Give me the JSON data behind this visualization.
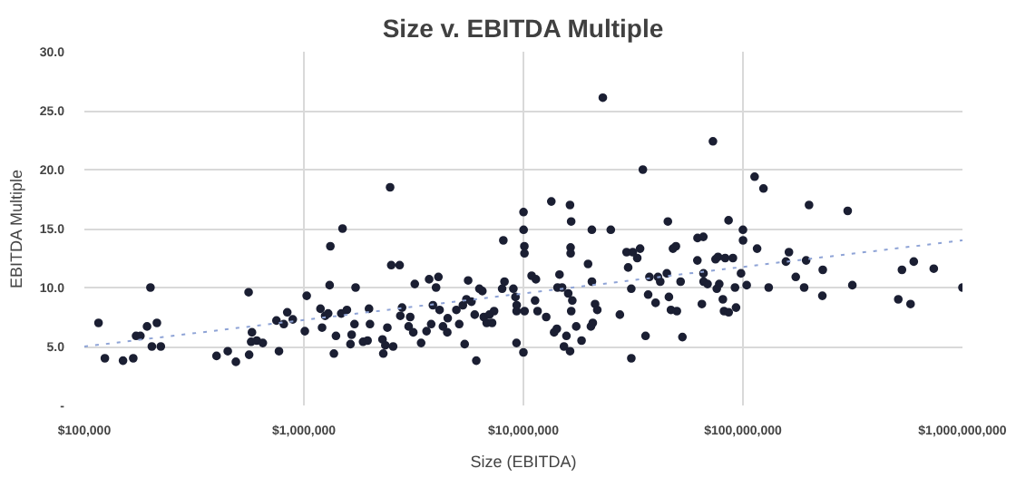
{
  "chart_data": {
    "type": "scatter",
    "title": "Size v. EBITDA Multiple",
    "xlabel": "Size (EBITDA)",
    "ylabel": "EBITDA Multiple",
    "log": "x",
    "grid": true,
    "marker": "circle",
    "xlim": [
      100000,
      1000000000
    ],
    "xticks": [
      {
        "value": 100000,
        "label": "$100,000"
      },
      {
        "value": 1000000,
        "label": "$1,000,000"
      },
      {
        "value": 10000000,
        "label": "$10,000,000"
      },
      {
        "value": 100000000,
        "label": "$100,000,000"
      },
      {
        "value": 1000000000,
        "label": "$1,000,000,000"
      }
    ],
    "ylim": [
      0,
      30
    ],
    "yticks": [
      {
        "value": 0,
        "label": "-"
      },
      {
        "value": 5,
        "label": "5.0"
      },
      {
        "value": 10,
        "label": "10.0"
      },
      {
        "value": 15,
        "label": "15.0"
      },
      {
        "value": 20,
        "label": "20.0"
      },
      {
        "value": 25,
        "label": "25.0"
      },
      {
        "value": 30,
        "label": "30.0"
      }
    ],
    "series": [
      {
        "color": "#1b1f33",
        "x": [
          116000,
          124000,
          150000,
          167000,
          172000,
          180000,
          193000,
          200000,
          203000,
          214000,
          223000,
          400000,
          450000,
          490000,
          560000,
          563000,
          580000,
          575000,
          610000,
          650000,
          750000,
          770000,
          810000,
          840000,
          890000,
          1010000,
          1030000,
          1190000,
          1210000,
          1250000,
          1290000,
          1310000,
          1320000,
          1500000,
          1370000,
          1400000,
          1480000,
          1570000,
          1650000,
          1700000,
          1720000,
          1630000,
          1980000,
          1860000,
          2000000,
          1950000,
          2280000,
          2300000,
          2350000,
          2400000,
          2470000,
          2500000,
          2550000,
          2730000,
          2750000,
          2800000,
          3000000,
          3050000,
          3150000,
          3200000,
          3420000,
          3620000,
          3720000,
          3800000,
          3870000,
          4000000,
          4100000,
          4150000,
          4300000,
          4500000,
          4520000,
          4950000,
          5100000,
          5300000,
          5400000,
          5600000,
          5500000,
          5800000,
          6000000,
          6100000,
          6300000,
          6500000,
          6600000,
          6800000,
          7000000,
          7200000,
          7350000,
          8000000,
          8100000,
          8200000,
          9000000,
          9200000,
          9300000,
          9310000,
          9320000,
          10000000,
          10010000,
          10020000,
          10100000,
          10110000,
          10120000,
          10900000,
          11400000,
          11300000,
          11600000,
          12700000,
          13400000,
          13800000,
          14200000,
          14300000,
          14600000,
          15000000,
          15300000,
          15700000,
          16400000,
          16410000,
          16000000,
          16300000,
          16500000,
          16310000,
          16510000,
          16700000,
          17400000,
          18400000,
          19700000,
          20500000,
          20510000,
          21200000,
          21700000,
          20300000,
          20700000,
          23000000,
          25000000,
          27500000,
          29500000,
          30000000,
          31000000,
          31010000,
          31500000,
          33000000,
          34000000,
          35000000,
          36000000,
          37000000,
          37500000,
          40000000,
          41000000,
          42000000,
          45500000,
          45000000,
          46000000,
          47000000,
          48000000,
          49500000,
          53000000,
          50000000,
          52000000,
          62000000,
          62100000,
          66000000,
          65000000,
          66100000,
          66200000,
          69000000,
          73000000,
          75000000,
          77000000,
          76000000,
          78000000,
          83000000,
          81000000,
          82000000,
          86000000,
          86100000,
          90000000,
          92000000,
          93000000,
          98000000,
          100000000,
          100100000,
          104000000,
          113000000,
          116000000,
          124000000,
          131000000,
          157000000,
          162000000,
          174000000,
          190000000,
          194000000,
          200000000,
          230000000,
          231000000,
          300000000,
          315000000,
          510000000,
          530000000,
          580000000,
          600000000,
          740000000,
          1000000000
        ],
        "values": [
          7.0,
          4.0,
          3.8,
          4.0,
          5.9,
          5.9,
          6.7,
          10.0,
          5.0,
          7.0,
          5.0,
          4.2,
          4.6,
          3.7,
          9.6,
          4.3,
          6.2,
          5.4,
          5.5,
          5.3,
          7.2,
          4.6,
          6.9,
          7.9,
          7.3,
          6.3,
          9.3,
          8.2,
          6.6,
          7.6,
          7.8,
          10.2,
          13.5,
          15.0,
          4.4,
          5.9,
          7.8,
          8.1,
          6.0,
          6.9,
          10.0,
          5.2,
          8.2,
          5.4,
          6.9,
          5.5,
          5.6,
          4.4,
          5.1,
          6.6,
          18.5,
          11.9,
          5.0,
          11.9,
          7.6,
          8.3,
          6.7,
          7.5,
          6.2,
          10.3,
          5.3,
          6.3,
          10.7,
          6.9,
          8.5,
          10.0,
          10.9,
          8.1,
          6.7,
          6.2,
          7.4,
          8.1,
          6.9,
          8.5,
          5.2,
          10.6,
          9.0,
          8.8,
          7.7,
          3.8,
          9.9,
          9.7,
          7.5,
          7.0,
          7.7,
          7.0,
          8.0,
          9.9,
          14.0,
          10.5,
          9.9,
          9.2,
          5.3,
          8.0,
          8.5,
          4.5,
          16.4,
          14.9,
          13.5,
          12.9,
          8.0,
          11.0,
          10.7,
          8.9,
          8.0,
          7.5,
          17.3,
          6.2,
          6.5,
          10.0,
          11.1,
          10.0,
          5.0,
          5.9,
          13.4,
          12.9,
          9.5,
          17.0,
          15.6,
          4.6,
          8.0,
          8.9,
          6.7,
          5.5,
          12.0,
          14.9,
          10.5,
          8.6,
          8.1,
          6.7,
          7.0,
          26.1,
          14.9,
          7.7,
          13.0,
          11.7,
          9.9,
          4.0,
          13.0,
          12.5,
          13.3,
          20.0,
          5.9,
          9.4,
          10.9,
          8.7,
          10.9,
          10.5,
          15.6,
          11.2,
          9.2,
          8.1,
          13.3,
          13.5,
          5.8,
          8.0,
          10.5,
          12.3,
          14.2,
          14.3,
          8.6,
          11.2,
          10.5,
          10.3,
          22.4,
          12.4,
          12.6,
          9.9,
          10.3,
          12.5,
          9.0,
          8.0,
          15.7,
          7.9,
          12.5,
          10.0,
          8.3,
          11.2,
          14.9,
          14.0,
          10.2,
          19.4,
          13.3,
          18.4,
          10.0,
          12.2,
          13.0,
          10.9,
          10.0,
          12.3,
          17.0,
          9.3,
          11.5,
          16.5,
          10.2,
          9.0,
          11.5,
          8.6,
          12.2,
          11.6,
          10.0
        ]
      },
      {
        "type": "line",
        "color": "#8ea3d6",
        "line_style": "dotted",
        "marker": "none",
        "x": [
          100000,
          1000000000
        ],
        "values": [
          5.0,
          14.0
        ]
      }
    ]
  }
}
